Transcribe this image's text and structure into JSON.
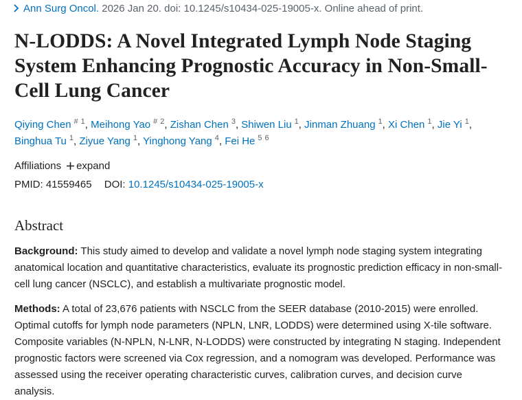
{
  "citation": {
    "journal": "Ann Surg Oncol.",
    "details": " 2026 Jan 20. doi: 10.1245/s10434-025-19005-x. Online ahead of print."
  },
  "title": "N-LODDS: A Novel Integrated Lymph Node Staging System Enhancing Prognostic Accuracy in Non-Small-Cell Lung Cancer",
  "authors": {
    "separator": ",",
    "list": [
      {
        "name": "Qiying Chen",
        "sup": [
          "#",
          "1"
        ]
      },
      {
        "name": "Meihong Yao",
        "sup": [
          "#",
          "2"
        ]
      },
      {
        "name": "Zishan Chen",
        "sup": [
          "3"
        ]
      },
      {
        "name": "Shiwen Liu",
        "sup": [
          "1"
        ]
      },
      {
        "name": "Jinman Zhuang",
        "sup": [
          "1"
        ]
      },
      {
        "name": "Xi Chen",
        "sup": [
          "1"
        ]
      },
      {
        "name": "Jie Yi",
        "sup": [
          "1"
        ]
      },
      {
        "name": "Binghua Tu",
        "sup": [
          "1"
        ]
      },
      {
        "name": "Ziyue Yang",
        "sup": [
          "1"
        ]
      },
      {
        "name": "Yinghong Yang",
        "sup": [
          "4"
        ]
      },
      {
        "name": "Fei He",
        "sup": [
          "5",
          "6"
        ]
      }
    ]
  },
  "affiliations": {
    "label": "Affiliations",
    "toggle": "expand"
  },
  "identifiers": {
    "pmid_label": "PMID:",
    "pmid": "41559465",
    "doi_label": "DOI:",
    "doi": "10.1245/s10434-025-19005-x"
  },
  "abstract": {
    "heading": "Abstract",
    "sections": [
      {
        "label": "Background:",
        "text": " This study aimed to develop and validate a novel lymph node staging system integrating anatomical location and quantitative characteristics, evaluate its prognostic prediction efficacy in non-small-cell lung cancer (NSCLC), and establish a multivariate prognostic model."
      },
      {
        "label": "Methods:",
        "text": " A total of 23,676 patients with NSCLC from the SEER database (2010-2015) were enrolled. Optimal cutoffs for lymph node parameters (NPLN, LNR, LODDS) were determined using X-tile software. Composite variables (N-NPLN, N-LNR, N-LODDS) were constructed by integrating N staging. Independent prognostic factors were screened via Cox regression, and a nomogram was developed. Performance was assessed using the receiver operating characteristic curves, calibration curves, and decision curve analysis."
      }
    ]
  }
}
